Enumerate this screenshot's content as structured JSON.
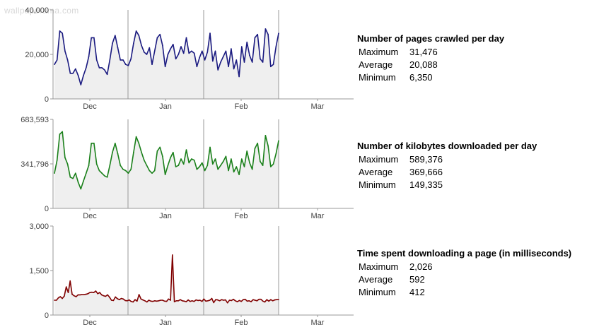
{
  "watermark": "wallpaperama.com",
  "month_labels": [
    "Dec",
    "Jan",
    "Feb",
    "Mar"
  ],
  "panels": [
    {
      "stats_title": "Number of pages crawled per day",
      "stats": [
        {
          "label": "Maximum",
          "value": "31,476"
        },
        {
          "label": "Average",
          "value": "20,088"
        },
        {
          "label": "Minimum",
          "value": "6,350"
        }
      ]
    },
    {
      "stats_title": "Number of kilobytes downloaded per day",
      "stats": [
        {
          "label": "Maximum",
          "value": "589,376"
        },
        {
          "label": "Average",
          "value": "369,666"
        },
        {
          "label": "Minimum",
          "value": "149,335"
        }
      ]
    },
    {
      "stats_title": "Time spent downloading a page (in milliseconds)",
      "stats": [
        {
          "label": "Maximum",
          "value": "2,026"
        },
        {
          "label": "Average",
          "value": "592"
        },
        {
          "label": "Minimum",
          "value": "412"
        }
      ]
    }
  ],
  "chart_data": [
    {
      "type": "area",
      "title": "Number of pages crawled per day",
      "xlabel": "",
      "ylabel": "",
      "ylim": [
        0,
        40000
      ],
      "y_ticks": [
        "40,000",
        "20,000",
        "0"
      ],
      "x_ticks": [
        "Dec",
        "Jan",
        "Feb",
        "Mar"
      ],
      "line_color": "#1a1a80",
      "fill_color": "#efefef",
      "values": [
        15500,
        17500,
        30500,
        29500,
        21500,
        17500,
        11500,
        11500,
        13500,
        10500,
        6350,
        10500,
        14000,
        19000,
        27500,
        27500,
        17500,
        14000,
        14000,
        13000,
        11000,
        17500,
        25000,
        28500,
        23000,
        17500,
        17500,
        15500,
        15000,
        18000,
        25000,
        30500,
        28500,
        24000,
        21000,
        20000,
        23000,
        15500,
        21500,
        27500,
        29000,
        24000,
        14500,
        20000,
        22500,
        24500,
        18000,
        20000,
        23500,
        20500,
        27500,
        20500,
        21500,
        20500,
        14500,
        18500,
        21500,
        17500,
        21000,
        29500,
        17000,
        21500,
        13000,
        16500,
        19000,
        21500,
        14500,
        22500,
        13500,
        17500,
        10000,
        23500,
        16500,
        25500,
        19500,
        16500,
        27500,
        29000,
        18000,
        16500,
        31476,
        29000,
        14500,
        15500,
        23500,
        29500
      ]
    },
    {
      "type": "area",
      "title": "Number of kilobytes downloaded per day",
      "xlabel": "",
      "ylabel": "",
      "ylim": [
        0,
        683593
      ],
      "y_ticks": [
        "683,593",
        "341,796",
        "0"
      ],
      "x_ticks": [
        "Dec",
        "Jan",
        "Feb",
        "Mar"
      ],
      "line_color": "#1a801a",
      "fill_color": "#efefef",
      "values": [
        270000,
        370000,
        570000,
        589376,
        390000,
        340000,
        240000,
        230000,
        270000,
        200000,
        149335,
        210000,
        270000,
        330000,
        500000,
        500000,
        340000,
        290000,
        270000,
        250000,
        240000,
        330000,
        430000,
        500000,
        420000,
        330000,
        300000,
        290000,
        270000,
        300000,
        430000,
        550000,
        500000,
        430000,
        370000,
        330000,
        290000,
        270000,
        290000,
        440000,
        470000,
        400000,
        260000,
        330000,
        390000,
        430000,
        320000,
        330000,
        380000,
        340000,
        450000,
        350000,
        380000,
        370000,
        300000,
        320000,
        350000,
        290000,
        330000,
        470000,
        340000,
        380000,
        300000,
        330000,
        360000,
        400000,
        290000,
        380000,
        280000,
        320000,
        260000,
        380000,
        320000,
        440000,
        350000,
        300000,
        460000,
        500000,
        360000,
        330000,
        560000,
        480000,
        320000,
        340000,
        420000,
        520000
      ]
    },
    {
      "type": "area",
      "title": "Time spent downloading a page (in milliseconds)",
      "xlabel": "",
      "ylabel": "",
      "ylim": [
        0,
        3000
      ],
      "y_ticks": [
        "3,000",
        "1,500",
        "0"
      ],
      "x_ticks": [
        "Dec",
        "Jan",
        "Feb",
        "Mar"
      ],
      "line_color": "#800000",
      "fill_color": "#efefef",
      "values": [
        500,
        500,
        580,
        620,
        560,
        640,
        950,
        760,
        1150,
        700,
        650,
        620,
        680,
        680,
        690,
        690,
        700,
        720,
        760,
        770,
        760,
        810,
        720,
        760,
        680,
        650,
        630,
        680,
        600,
        500,
        490,
        610,
        550,
        520,
        560,
        540,
        490,
        480,
        510,
        460,
        440,
        520,
        470,
        690,
        540,
        510,
        480,
        440,
        500,
        470,
        460,
        480,
        470,
        480,
        500,
        500,
        470,
        460,
        540,
        500,
        2026,
        450,
        480,
        480,
        520,
        480,
        470,
        450,
        510,
        460,
        480,
        460,
        510,
        490,
        500,
        460,
        540,
        470,
        480,
        500,
        560,
        420,
        520,
        510,
        480,
        520,
        500,
        510,
        412,
        500,
        490,
        530,
        480,
        450,
        490,
        460,
        520,
        530,
        470,
        480,
        450,
        520,
        500,
        480,
        530,
        530,
        470,
        440,
        520,
        470,
        520,
        480,
        510,
        520,
        520
      ]
    }
  ]
}
